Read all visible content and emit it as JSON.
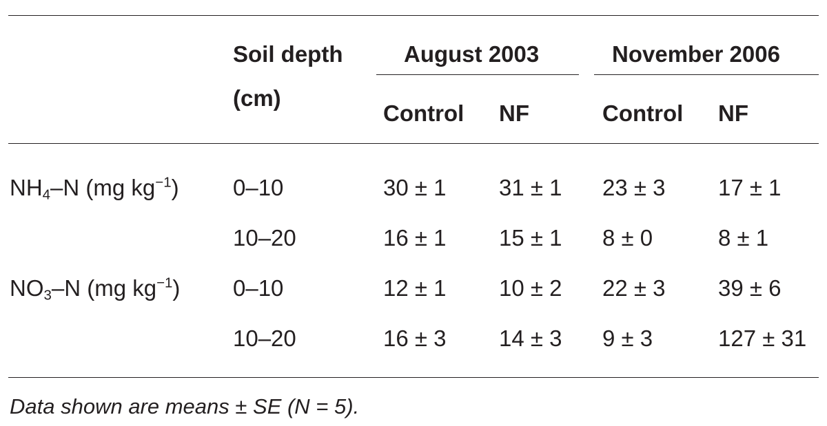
{
  "header": {
    "soil_depth_line1": "Soil depth",
    "soil_depth_line2": "(cm)",
    "group_1": "August 2003",
    "group_2": "November 2006",
    "group_1_col_a": "Control",
    "group_1_col_b": "NF",
    "group_2_col_a": "Control",
    "group_2_col_b": "NF"
  },
  "rows": [
    {
      "label_main": "NH",
      "label_sub": "4",
      "label_mid": "–N (mg kg",
      "label_sup": "−1",
      "label_end": ")",
      "depth": "0–10",
      "aug_control": "30 ± 1",
      "aug_nf": "31 ± 1",
      "nov_control": "23 ± 3",
      "nov_nf": "17 ± 1"
    },
    {
      "depth": "10–20",
      "aug_control": "16 ± 1",
      "aug_nf": "15 ± 1",
      "nov_control": "8 ± 0",
      "nov_nf": "8 ± 1"
    },
    {
      "label_main": "NO",
      "label_sub": "3",
      "label_mid": "–N (mg kg",
      "label_sup": "−1",
      "label_end": ")",
      "depth": "0–10",
      "aug_control": "12 ± 1",
      "aug_nf": "10 ± 2",
      "nov_control": "22 ± 3",
      "nov_nf": "39 ± 6"
    },
    {
      "depth": "10–20",
      "aug_control": "16 ± 3",
      "aug_nf": "14 ± 3",
      "nov_control": "9 ± 3",
      "nov_nf": "127 ± 31"
    }
  ],
  "footnote": "Data shown are means ± SE (N = 5)."
}
